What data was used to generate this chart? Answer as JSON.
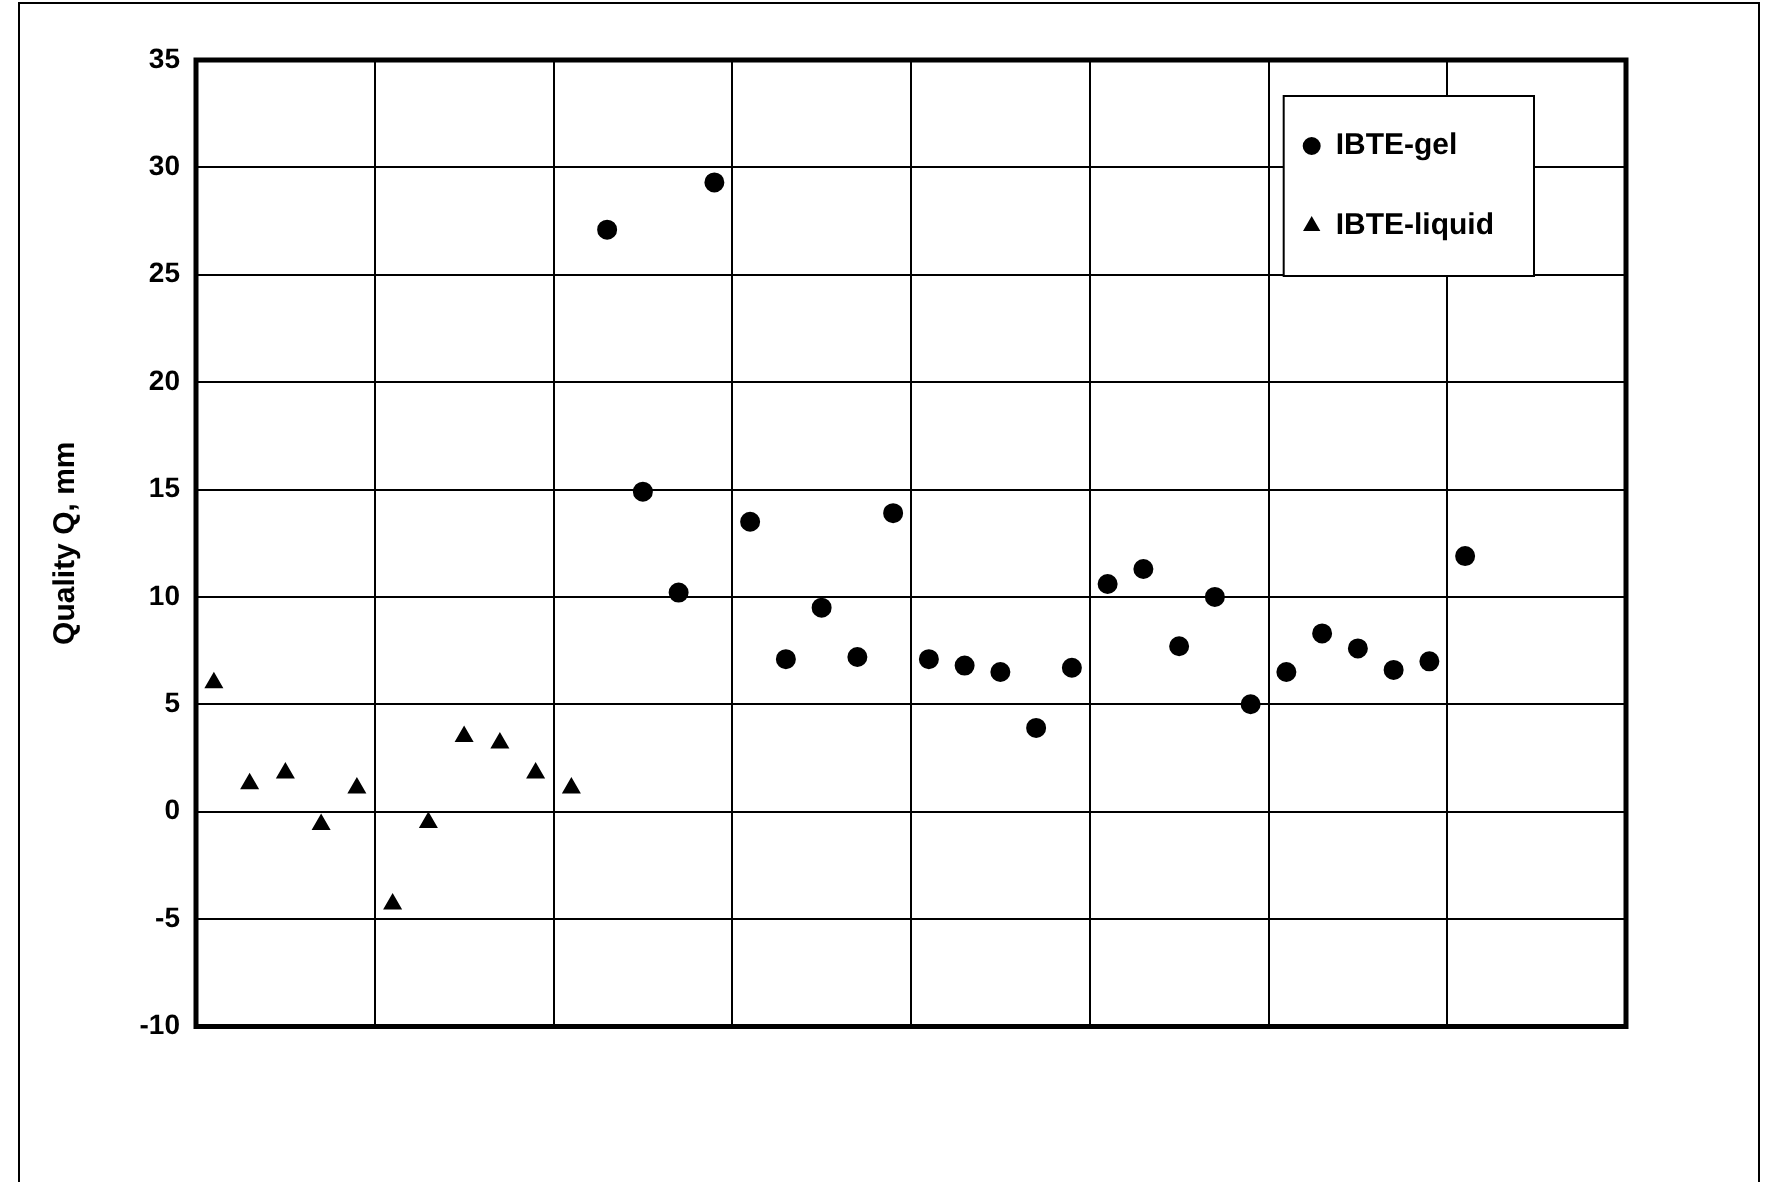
{
  "chart_data": {
    "type": "scatter",
    "ylabel": "Quality Q, mm",
    "categories": [
      null,
      null,
      null,
      null,
      null,
      null,
      null,
      null,
      null,
      null,
      null,
      null,
      null,
      null,
      null,
      null,
      null,
      null,
      null,
      null,
      null,
      null,
      null,
      null,
      null,
      null,
      null,
      null,
      null,
      null,
      null,
      null,
      null,
      null,
      null,
      null,
      null,
      null,
      null,
      null
    ],
    "ylim": [
      -10,
      35
    ],
    "yticks": [
      -10,
      -5,
      0,
      5,
      10,
      15,
      20,
      25,
      30,
      35
    ],
    "grid": true,
    "legend": "top right",
    "series": [
      {
        "name": "IBTE-gel",
        "color": "#000000",
        "marker": "circle",
        "values": [
          null,
          null,
          null,
          null,
          null,
          null,
          null,
          null,
          null,
          null,
          null,
          27.1,
          14.9,
          10.2,
          29.3,
          13.5,
          7.1,
          9.5,
          7.2,
          13.9,
          7.1,
          6.8,
          6.5,
          3.9,
          6.7,
          10.6,
          11.3,
          7.7,
          10.0,
          5.0,
          6.5,
          8.3,
          7.6,
          6.6,
          7.0,
          11.9,
          null,
          null,
          null,
          null
        ]
      },
      {
        "name": "IBTE-liquid",
        "color": "#000000",
        "marker": "triangle",
        "values": [
          6.0,
          1.3,
          1.8,
          -0.6,
          1.1,
          -4.3,
          -0.5,
          3.5,
          3.2,
          1.8,
          1.1,
          null,
          null,
          null,
          null,
          null,
          null,
          null,
          null,
          null,
          null,
          null,
          null,
          null,
          null,
          null,
          null,
          null,
          null,
          null,
          null,
          null,
          null,
          null,
          null,
          null,
          null,
          null,
          null,
          null
        ]
      }
    ]
  }
}
